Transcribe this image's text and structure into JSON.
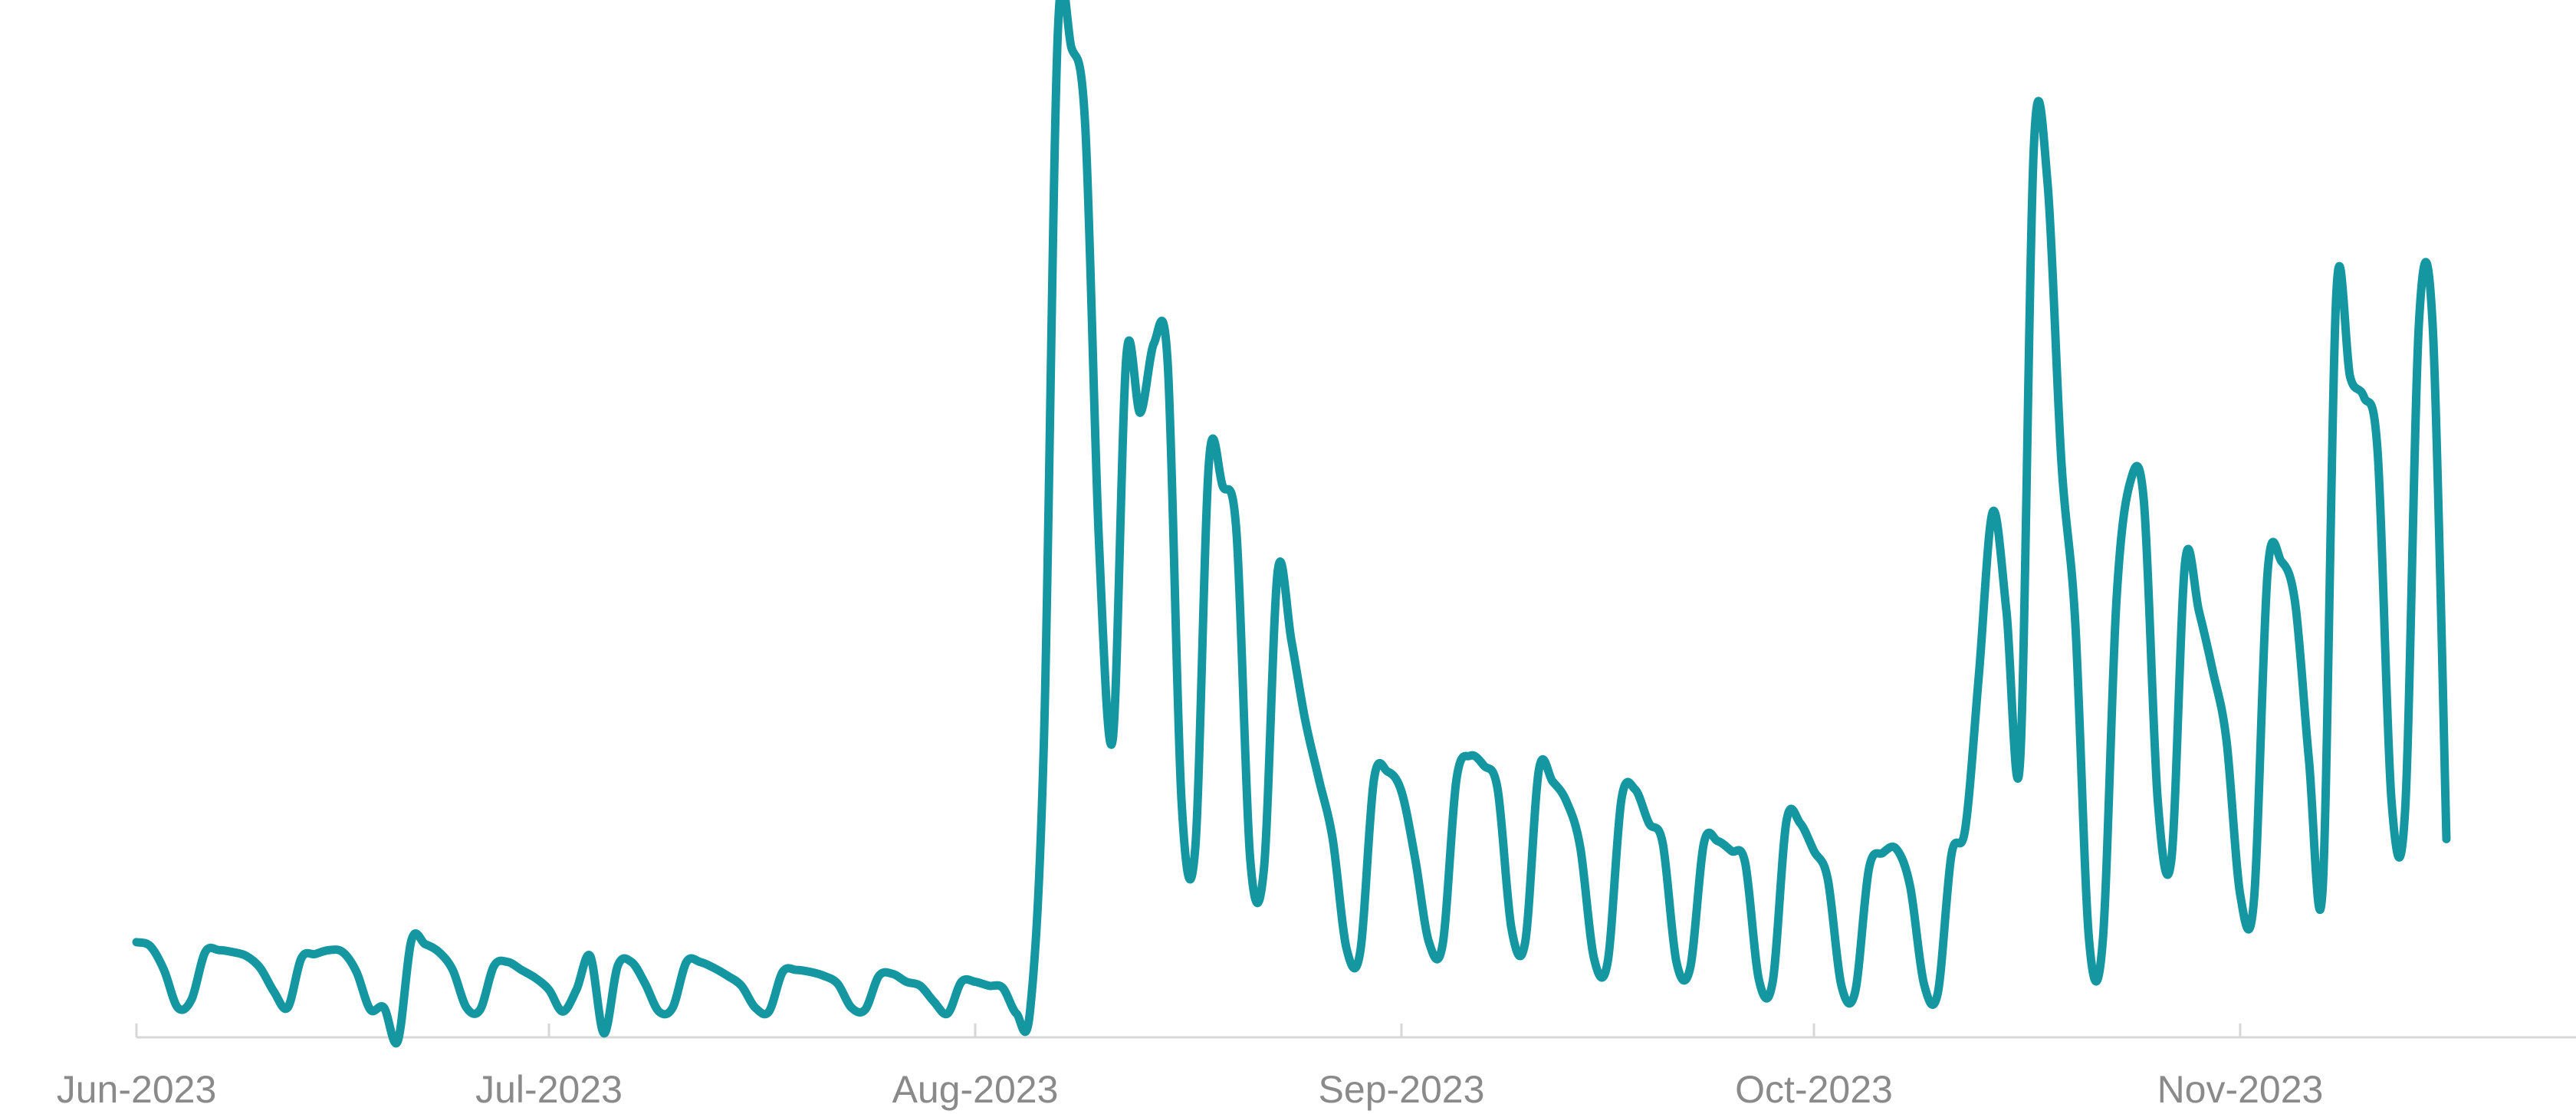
{
  "chart_data": {
    "type": "line",
    "title": "",
    "xlabel": "",
    "ylabel": "",
    "x_tick_labels": [
      "Jun-2023",
      "Jul-2023",
      "Aug-2023",
      "Sep-2023",
      "Oct-2023",
      "Nov-2023"
    ],
    "x_ticks": [
      "2023-06-01",
      "2023-07-01",
      "2023-08-01",
      "2023-09-01",
      "2023-10-01",
      "2023-11-01"
    ],
    "xlim": [
      "2023-06-01",
      "2023-12-01"
    ],
    "y_ticks_shown": false,
    "grid": false,
    "legend": "none",
    "series": [
      {
        "color": "#1497a0",
        "points": [
          [
            "2023-06-01",
            48
          ],
          [
            "2023-06-02",
            46
          ],
          [
            "2023-06-03",
            34
          ],
          [
            "2023-06-04",
            15
          ],
          [
            "2023-06-05",
            19
          ],
          [
            "2023-06-06",
            43
          ],
          [
            "2023-06-07",
            44
          ],
          [
            "2023-06-08",
            43
          ],
          [
            "2023-06-09",
            41
          ],
          [
            "2023-06-10",
            35
          ],
          [
            "2023-06-11",
            23
          ],
          [
            "2023-06-12",
            15
          ],
          [
            "2023-06-13",
            40
          ],
          [
            "2023-06-14",
            42
          ],
          [
            "2023-06-15",
            44
          ],
          [
            "2023-06-16",
            43
          ],
          [
            "2023-06-17",
            33
          ],
          [
            "2023-06-18",
            14
          ],
          [
            "2023-06-19",
            15
          ],
          [
            "2023-06-20",
            -2
          ],
          [
            "2023-06-21",
            49
          ],
          [
            "2023-06-22",
            47
          ],
          [
            "2023-06-23",
            43
          ],
          [
            "2023-06-24",
            34
          ],
          [
            "2023-06-25",
            15
          ],
          [
            "2023-06-26",
            14
          ],
          [
            "2023-06-27",
            36
          ],
          [
            "2023-06-28",
            38
          ],
          [
            "2023-06-29",
            34
          ],
          [
            "2023-06-30",
            30
          ],
          [
            "2023-07-01",
            24
          ],
          [
            "2023-07-02",
            13
          ],
          [
            "2023-07-03",
            24
          ],
          [
            "2023-07-04",
            41
          ],
          [
            "2023-07-05",
            2
          ],
          [
            "2023-07-06",
            36
          ],
          [
            "2023-07-07",
            38
          ],
          [
            "2023-07-08",
            27
          ],
          [
            "2023-07-09",
            13
          ],
          [
            "2023-07-10",
            15
          ],
          [
            "2023-07-11",
            38
          ],
          [
            "2023-07-12",
            38
          ],
          [
            "2023-07-13",
            35
          ],
          [
            "2023-07-14",
            31
          ],
          [
            "2023-07-15",
            26
          ],
          [
            "2023-07-16",
            15
          ],
          [
            "2023-07-17",
            13
          ],
          [
            "2023-07-18",
            33
          ],
          [
            "2023-07-19",
            34
          ],
          [
            "2023-07-20",
            33
          ],
          [
            "2023-07-21",
            31
          ],
          [
            "2023-07-22",
            27
          ],
          [
            "2023-07-23",
            15
          ],
          [
            "2023-07-24",
            14
          ],
          [
            "2023-07-25",
            31
          ],
          [
            "2023-07-26",
            32
          ],
          [
            "2023-07-27",
            28
          ],
          [
            "2023-07-28",
            26
          ],
          [
            "2023-07-29",
            18
          ],
          [
            "2023-07-30",
            12
          ],
          [
            "2023-07-31",
            28
          ],
          [
            "2023-08-01",
            28
          ],
          [
            "2023-08-02",
            26
          ],
          [
            "2023-08-03",
            25
          ],
          [
            "2023-08-04",
            12
          ],
          [
            "2023-08-05",
            14
          ],
          [
            "2023-08-06",
            150
          ],
          [
            "2023-08-07",
            505
          ],
          [
            "2023-08-08",
            499
          ],
          [
            "2023-08-09",
            460
          ],
          [
            "2023-08-10",
            250
          ],
          [
            "2023-08-11",
            150
          ],
          [
            "2023-08-12",
            344
          ],
          [
            "2023-08-13",
            315
          ],
          [
            "2023-08-14",
            350
          ],
          [
            "2023-08-15",
            340
          ],
          [
            "2023-08-16",
            120
          ],
          [
            "2023-08-17",
            95
          ],
          [
            "2023-08-18",
            290
          ],
          [
            "2023-08-19",
            278
          ],
          [
            "2023-08-20",
            255
          ],
          [
            "2023-08-21",
            90
          ],
          [
            "2023-08-22",
            85
          ],
          [
            "2023-08-23",
            235
          ],
          [
            "2023-08-24",
            200
          ],
          [
            "2023-08-25",
            160
          ],
          [
            "2023-08-26",
            130
          ],
          [
            "2023-08-27",
            100
          ],
          [
            "2023-08-28",
            45
          ],
          [
            "2023-08-29",
            43
          ],
          [
            "2023-08-30",
            130
          ],
          [
            "2023-08-31",
            134
          ],
          [
            "2023-09-01",
            124
          ],
          [
            "2023-09-02",
            90
          ],
          [
            "2023-09-03",
            48
          ],
          [
            "2023-09-04",
            47
          ],
          [
            "2023-09-05",
            130
          ],
          [
            "2023-09-06",
            142
          ],
          [
            "2023-09-07",
            137
          ],
          [
            "2023-09-08",
            125
          ],
          [
            "2023-09-09",
            55
          ],
          [
            "2023-09-10",
            48
          ],
          [
            "2023-09-11",
            135
          ],
          [
            "2023-09-12",
            129
          ],
          [
            "2023-09-13",
            119
          ],
          [
            "2023-09-14",
            96
          ],
          [
            "2023-09-15",
            40
          ],
          [
            "2023-09-16",
            38
          ],
          [
            "2023-09-17",
            120
          ],
          [
            "2023-09-18",
            125
          ],
          [
            "2023-09-19",
            108
          ],
          [
            "2023-09-20",
            98
          ],
          [
            "2023-09-21",
            38
          ],
          [
            "2023-09-22",
            35
          ],
          [
            "2023-09-23",
            98
          ],
          [
            "2023-09-24",
            99
          ],
          [
            "2023-09-25",
            94
          ],
          [
            "2023-09-26",
            88
          ],
          [
            "2023-09-27",
            29
          ],
          [
            "2023-09-28",
            28
          ],
          [
            "2023-09-29",
            109
          ],
          [
            "2023-09-30",
            108
          ],
          [
            "2023-10-01",
            94
          ],
          [
            "2023-10-02",
            80
          ],
          [
            "2023-10-03",
            26
          ],
          [
            "2023-10-04",
            23
          ],
          [
            "2023-10-05",
            85
          ],
          [
            "2023-10-06",
            93
          ],
          [
            "2023-10-07",
            95
          ],
          [
            "2023-10-08",
            76
          ],
          [
            "2023-10-09",
            27
          ],
          [
            "2023-10-10",
            22
          ],
          [
            "2023-10-11",
            92
          ],
          [
            "2023-10-12",
            105
          ],
          [
            "2023-10-13",
            183
          ],
          [
            "2023-10-14",
            265
          ],
          [
            "2023-10-15",
            215
          ],
          [
            "2023-10-16",
            140
          ],
          [
            "2023-10-17",
            450
          ],
          [
            "2023-10-18",
            430
          ],
          [
            "2023-10-19",
            290
          ],
          [
            "2023-10-20",
            210
          ],
          [
            "2023-10-21",
            50
          ],
          [
            "2023-10-22",
            48
          ],
          [
            "2023-10-23",
            220
          ],
          [
            "2023-10-24",
            280
          ],
          [
            "2023-10-25",
            270
          ],
          [
            "2023-10-26",
            120
          ],
          [
            "2023-10-27",
            90
          ],
          [
            "2023-10-28",
            240
          ],
          [
            "2023-10-29",
            215
          ],
          [
            "2023-10-30",
            185
          ],
          [
            "2023-10-31",
            150
          ],
          [
            "2023-11-01",
            72
          ],
          [
            "2023-11-02",
            69
          ],
          [
            "2023-11-03",
            235
          ],
          [
            "2023-11-04",
            240
          ],
          [
            "2023-11-05",
            219
          ],
          [
            "2023-11-06",
            140
          ],
          [
            "2023-11-07",
            75
          ],
          [
            "2023-11-08",
            376
          ],
          [
            "2023-11-09",
            333
          ],
          [
            "2023-11-10",
            323
          ],
          [
            "2023-11-11",
            295
          ],
          [
            "2023-11-12",
            120
          ],
          [
            "2023-11-13",
            115
          ],
          [
            "2023-11-14",
            360
          ],
          [
            "2023-11-15",
            359
          ],
          [
            "2023-11-16",
            100
          ]
        ]
      }
    ]
  }
}
